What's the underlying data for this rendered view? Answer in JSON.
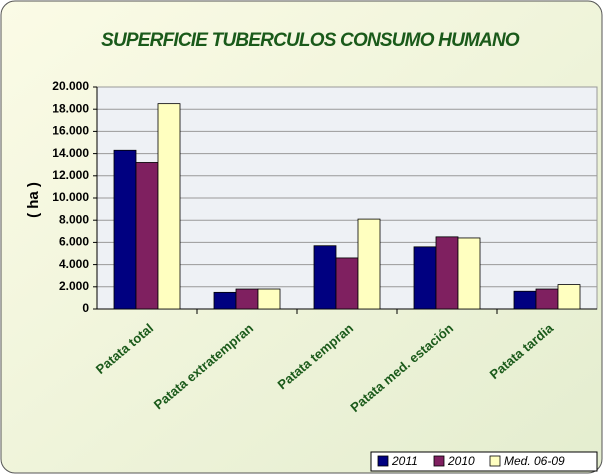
{
  "chart_data": {
    "type": "bar",
    "title": "SUPERFICIE TUBERCULOS CONSUMO HUMANO",
    "y_label": "( ha )",
    "categories": [
      "Patata total",
      "Patata extratempran",
      "Patata tempran",
      "Patata med. estación",
      "Patata tardia"
    ],
    "series": [
      {
        "name": "2011",
        "color": "#000080",
        "values": [
          14300,
          1500,
          5700,
          5600,
          1600
        ]
      },
      {
        "name": "2010",
        "color": "#7f2060",
        "values": [
          13200,
          1800,
          4600,
          6500,
          1800
        ]
      },
      {
        "name": "Med. 06-09",
        "color": "#ffffc0",
        "values": [
          18500,
          1800,
          8100,
          6400,
          2200
        ]
      }
    ],
    "ylim": [
      0,
      20000
    ],
    "yticks": [
      0,
      {
        "value": 2000,
        "label": "2.000"
      },
      {
        "value": 4000,
        "label": "4.000"
      },
      {
        "value": 6000,
        "label": "6.000"
      },
      {
        "value": 8000,
        "label": "8.000"
      },
      {
        "value": 10000,
        "label": "10.000"
      },
      {
        "value": 12000,
        "label": "12.000"
      },
      {
        "value": 14000,
        "label": "14.000"
      },
      {
        "value": 16000,
        "label": "16.000"
      },
      {
        "value": 18000,
        "label": "18.000"
      },
      {
        "value": 20000,
        "label": "20.000"
      }
    ],
    "grid": true,
    "legend": "bottom-right"
  }
}
